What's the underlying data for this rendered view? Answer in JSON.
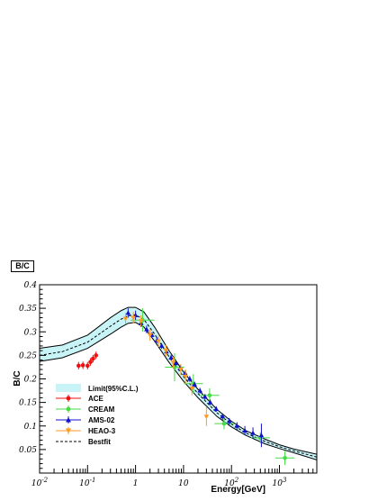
{
  "page": {
    "title": "B/C"
  },
  "chart_data": {
    "type": "scatter",
    "title": "B/C",
    "xlabel": "Energy[GeV]",
    "ylabel": "B/C",
    "xscale": "log",
    "xlim": [
      0.01,
      6000
    ],
    "ylim": [
      0,
      0.4
    ],
    "grid": false,
    "legend_position": "bottom-left",
    "x_tick_labels": [
      "10^-2",
      "10^-1",
      "1",
      "10",
      "10^2",
      "10^3"
    ],
    "y_tick_labels": [
      "0.05",
      "0.1",
      "0.15",
      "0.2",
      "0.25",
      "0.3",
      "0.35",
      "0.4"
    ],
    "band": {
      "name": "Limit(95%C.L.)",
      "color": "#c8f4f8",
      "x": [
        0.01,
        0.03,
        0.1,
        0.3,
        0.5,
        0.7,
        1.0,
        1.5,
        2.5,
        5,
        10,
        20,
        50,
        100,
        200,
        500,
        1000,
        2000,
        6000
      ],
      "lower": [
        0.237,
        0.245,
        0.265,
        0.295,
        0.31,
        0.318,
        0.32,
        0.31,
        0.28,
        0.235,
        0.195,
        0.16,
        0.12,
        0.098,
        0.08,
        0.062,
        0.052,
        0.043,
        0.028
      ],
      "upper": [
        0.265,
        0.272,
        0.293,
        0.33,
        0.345,
        0.352,
        0.352,
        0.342,
        0.31,
        0.26,
        0.215,
        0.178,
        0.135,
        0.11,
        0.09,
        0.072,
        0.06,
        0.051,
        0.04
      ]
    },
    "bestfit": {
      "name": "Bestfit",
      "x": [
        0.01,
        0.03,
        0.1,
        0.3,
        0.5,
        0.7,
        1.0,
        1.5,
        2.5,
        5,
        10,
        20,
        50,
        100,
        200,
        500,
        1000,
        2000,
        6000
      ],
      "y": [
        0.25,
        0.258,
        0.278,
        0.312,
        0.327,
        0.334,
        0.336,
        0.326,
        0.295,
        0.247,
        0.205,
        0.169,
        0.128,
        0.104,
        0.085,
        0.067,
        0.056,
        0.047,
        0.034
      ]
    },
    "series": [
      {
        "name": "ACE",
        "color": "#ee1111",
        "marker": "circle",
        "x": [
          0.065,
          0.08,
          0.1,
          0.115,
          0.13,
          0.15
        ],
        "y": [
          0.228,
          0.229,
          0.228,
          0.236,
          0.243,
          0.25
        ],
        "yerr": [
          0.008,
          0.008,
          0.008,
          0.008,
          0.008,
          0.008
        ]
      },
      {
        "name": "CREAM",
        "color": "#44dd44",
        "marker": "circle",
        "x": [
          1.4,
          6.5,
          16,
          35,
          70,
          400,
          1300
        ],
        "y": [
          0.325,
          0.225,
          0.19,
          0.165,
          0.105,
          0.075,
          0.032
        ],
        "yerr": [
          0.025,
          0.03,
          0.02,
          0.015,
          0.012,
          0.012,
          0.015
        ],
        "xerr_log": [
          0.25,
          0.2,
          0.2,
          0.2,
          0.2,
          0.2,
          0.2
        ]
      },
      {
        "name": "AMS-02",
        "color": "#1111cc",
        "marker": "triangle",
        "x": [
          0.7,
          1.0,
          1.3,
          1.7,
          2.2,
          2.8,
          3.5,
          4.4,
          5.5,
          6.9,
          8.6,
          10.8,
          13.5,
          17,
          22,
          28,
          36,
          48,
          65,
          90,
          130,
          190,
          280,
          420
        ],
        "y": [
          0.34,
          0.335,
          0.318,
          0.305,
          0.293,
          0.282,
          0.27,
          0.258,
          0.245,
          0.233,
          0.223,
          0.212,
          0.2,
          0.188,
          0.175,
          0.162,
          0.15,
          0.136,
          0.12,
          0.11,
          0.1,
          0.09,
          0.085,
          0.08
        ],
        "yerr": [
          0.01,
          0.01,
          0.008,
          0.008,
          0.006,
          0.006,
          0.006,
          0.006,
          0.006,
          0.006,
          0.006,
          0.006,
          0.006,
          0.006,
          0.006,
          0.006,
          0.006,
          0.006,
          0.007,
          0.007,
          0.008,
          0.01,
          0.012,
          0.025
        ]
      },
      {
        "name": "HEAO-3",
        "color": "#ff9922",
        "marker": "triangle-down",
        "x": [
          0.62,
          0.9,
          1.3,
          2.0,
          3.0,
          4.3,
          6.1,
          8.8,
          11,
          15,
          30
        ],
        "y": [
          0.328,
          0.33,
          0.323,
          0.293,
          0.28,
          0.26,
          0.235,
          0.22,
          0.205,
          0.18,
          0.12
        ],
        "yerr": [
          0.012,
          0.012,
          0.012,
          0.012,
          0.012,
          0.012,
          0.012,
          0.012,
          0.015,
          0.015,
          0.02
        ]
      }
    ],
    "legend": {
      "band_label": "Limit(95%C.L.)",
      "ace_label": "ACE",
      "cream_label": "CREAM",
      "ams_label": "AMS-02",
      "heao_label": "HEAO-3",
      "bestfit_label": "Bestfit"
    }
  }
}
